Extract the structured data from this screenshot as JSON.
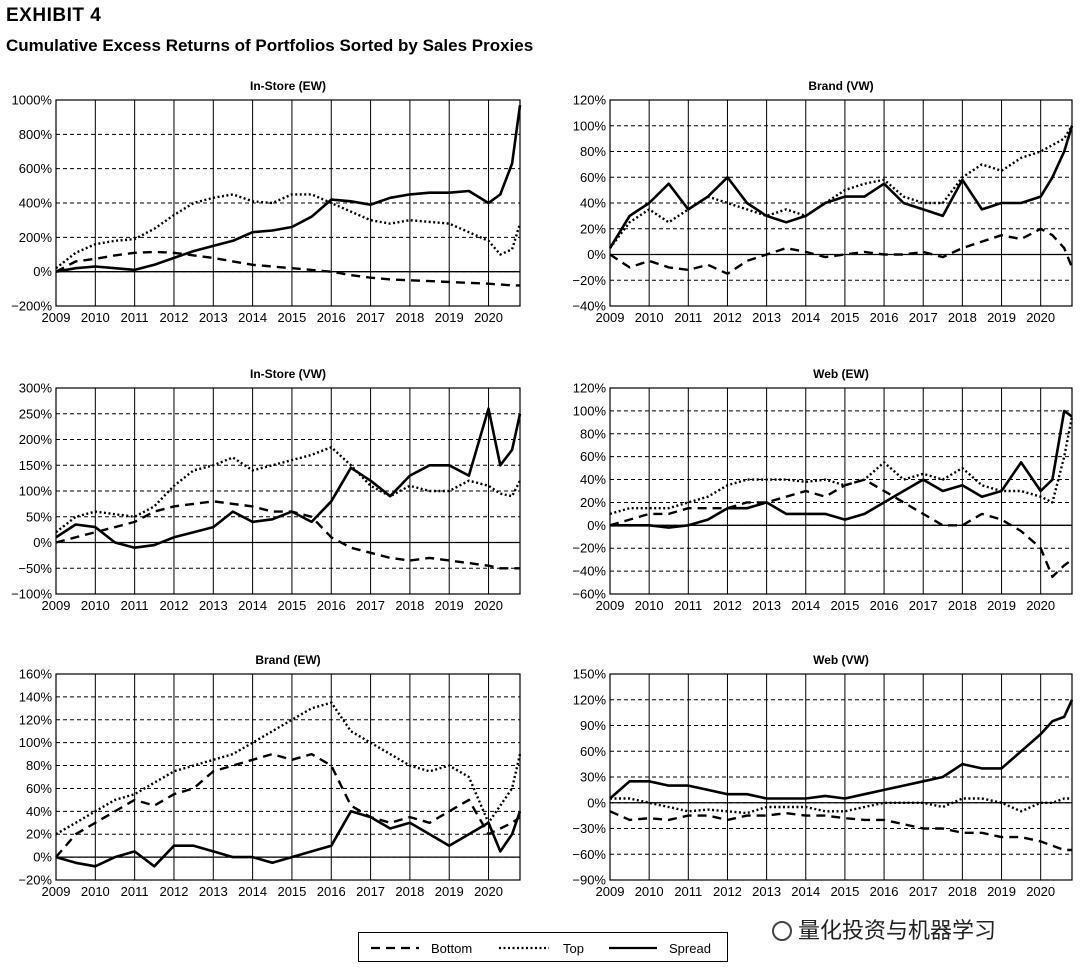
{
  "header": {
    "exhibit": "EXHIBIT 4",
    "title": "Cumulative Excess Returns of Portfolios Sorted by Sales Proxies"
  },
  "legend": {
    "bottom": "Bottom",
    "top": "Top",
    "spread": "Spread"
  },
  "watermark": "量化投资与机器学习",
  "chart_data": [
    {
      "type": "line",
      "title": "In-Store (EW)",
      "x": [
        2009,
        2009.5,
        2010,
        2010.5,
        2011,
        2011.5,
        2012,
        2012.5,
        2013,
        2013.5,
        2014,
        2014.5,
        2015,
        2015.5,
        2016,
        2016.5,
        2017,
        2017.5,
        2018,
        2018.5,
        2019,
        2019.5,
        2020,
        2020.3,
        2020.6,
        2020.8
      ],
      "xticks": [
        "2009",
        "2010",
        "2011",
        "2012",
        "2013",
        "2014",
        "2015",
        "2016",
        "2017",
        "2018",
        "2019",
        "2020"
      ],
      "yticks": [
        "−200%",
        "0%",
        "200%",
        "400%",
        "600%",
        "800%",
        "1000%"
      ],
      "ylim": [
        -200,
        1000
      ],
      "series": [
        {
          "name": "Bottom",
          "values": [
            0,
            60,
            75,
            95,
            110,
            115,
            110,
            95,
            80,
            60,
            40,
            30,
            20,
            10,
            0,
            -20,
            -35,
            -45,
            -50,
            -55,
            -60,
            -65,
            -70,
            -75,
            -80,
            -80
          ]
        },
        {
          "name": "Top",
          "values": [
            20,
            110,
            160,
            180,
            190,
            250,
            330,
            400,
            430,
            450,
            410,
            400,
            450,
            450,
            400,
            350,
            300,
            280,
            300,
            290,
            280,
            230,
            180,
            100,
            130,
            280
          ]
        },
        {
          "name": "Spread",
          "values": [
            0,
            20,
            30,
            20,
            10,
            40,
            80,
            120,
            150,
            180,
            230,
            240,
            260,
            320,
            420,
            410,
            390,
            430,
            450,
            460,
            460,
            470,
            400,
            450,
            630,
            970
          ]
        }
      ]
    },
    {
      "type": "line",
      "title": "Brand (VW)",
      "x": [
        2009,
        2009.5,
        2010,
        2010.5,
        2011,
        2011.5,
        2012,
        2012.5,
        2013,
        2013.5,
        2014,
        2014.5,
        2015,
        2015.5,
        2016,
        2016.5,
        2017,
        2017.5,
        2018,
        2018.5,
        2019,
        2019.5,
        2020,
        2020.3,
        2020.6,
        2020.8
      ],
      "xticks": [
        "2009",
        "2010",
        "2011",
        "2012",
        "2013",
        "2014",
        "2015",
        "2016",
        "2017",
        "2018",
        "2019",
        "2020"
      ],
      "yticks": [
        "−40%",
        "−20%",
        "0%",
        "20%",
        "40%",
        "60%",
        "80%",
        "100%",
        "120%"
      ],
      "ylim": [
        -40,
        120
      ],
      "series": [
        {
          "name": "Bottom",
          "values": [
            0,
            -10,
            -5,
            -10,
            -12,
            -8,
            -15,
            -5,
            0,
            5,
            2,
            -2,
            0,
            2,
            0,
            0,
            2,
            -2,
            5,
            10,
            15,
            12,
            20,
            15,
            5,
            -10
          ]
        },
        {
          "name": "Top",
          "values": [
            5,
            25,
            35,
            25,
            35,
            45,
            40,
            35,
            30,
            35,
            30,
            40,
            50,
            55,
            58,
            45,
            40,
            40,
            60,
            70,
            65,
            75,
            80,
            85,
            90,
            100
          ]
        },
        {
          "name": "Spread",
          "values": [
            5,
            30,
            40,
            55,
            35,
            45,
            60,
            40,
            30,
            25,
            30,
            40,
            45,
            45,
            55,
            40,
            35,
            30,
            58,
            35,
            40,
            40,
            45,
            60,
            80,
            100
          ]
        }
      ]
    },
    {
      "type": "line",
      "title": "In-Store (VW)",
      "x": [
        2009,
        2009.5,
        2010,
        2010.5,
        2011,
        2011.5,
        2012,
        2012.5,
        2013,
        2013.5,
        2014,
        2014.5,
        2015,
        2015.5,
        2016,
        2016.5,
        2017,
        2017.5,
        2018,
        2018.5,
        2019,
        2019.5,
        2020,
        2020.3,
        2020.6,
        2020.8
      ],
      "xticks": [
        "2009",
        "2010",
        "2011",
        "2012",
        "2013",
        "2014",
        "2015",
        "2016",
        "2017",
        "2018",
        "2019",
        "2020"
      ],
      "yticks": [
        "−100%",
        "−50%",
        "0%",
        "50%",
        "100%",
        "150%",
        "200%",
        "250%",
        "300%"
      ],
      "ylim": [
        -100,
        300
      ],
      "series": [
        {
          "name": "Bottom",
          "values": [
            0,
            10,
            20,
            30,
            40,
            60,
            70,
            75,
            80,
            75,
            70,
            60,
            60,
            50,
            10,
            -10,
            -20,
            -30,
            -35,
            -30,
            -35,
            -40,
            -45,
            -50,
            -50,
            -50
          ]
        },
        {
          "name": "Top",
          "values": [
            20,
            50,
            60,
            55,
            50,
            70,
            110,
            140,
            150,
            165,
            140,
            150,
            160,
            170,
            185,
            150,
            110,
            90,
            110,
            100,
            100,
            120,
            110,
            95,
            90,
            120
          ]
        },
        {
          "name": "Spread",
          "values": [
            10,
            35,
            30,
            0,
            -10,
            -5,
            10,
            20,
            30,
            60,
            40,
            45,
            60,
            40,
            80,
            145,
            120,
            90,
            130,
            150,
            150,
            130,
            260,
            150,
            180,
            250
          ]
        }
      ]
    },
    {
      "type": "line",
      "title": "Web (EW)",
      "x": [
        2009,
        2009.5,
        2010,
        2010.5,
        2011,
        2011.5,
        2012,
        2012.5,
        2013,
        2013.5,
        2014,
        2014.5,
        2015,
        2015.5,
        2016,
        2016.5,
        2017,
        2017.5,
        2018,
        2018.5,
        2019,
        2019.5,
        2020,
        2020.3,
        2020.6,
        2020.8
      ],
      "xticks": [
        "2009",
        "2010",
        "2011",
        "2012",
        "2013",
        "2014",
        "2015",
        "2016",
        "2017",
        "2018",
        "2019",
        "2020"
      ],
      "yticks": [
        "−60%",
        "−40%",
        "−20%",
        "0%",
        "20%",
        "40%",
        "60%",
        "80%",
        "100%",
        "120%"
      ],
      "ylim": [
        -60,
        120
      ],
      "series": [
        {
          "name": "Bottom",
          "values": [
            0,
            5,
            10,
            10,
            15,
            15,
            15,
            20,
            20,
            25,
            30,
            25,
            35,
            40,
            30,
            20,
            10,
            0,
            0,
            10,
            5,
            -5,
            -20,
            -45,
            -35,
            -30
          ]
        },
        {
          "name": "Top",
          "values": [
            10,
            15,
            15,
            15,
            20,
            25,
            35,
            40,
            40,
            40,
            38,
            40,
            35,
            40,
            55,
            40,
            45,
            40,
            50,
            35,
            30,
            30,
            25,
            20,
            60,
            95
          ]
        },
        {
          "name": "Spread",
          "values": [
            0,
            0,
            0,
            -2,
            0,
            5,
            15,
            15,
            20,
            10,
            10,
            10,
            5,
            10,
            20,
            30,
            40,
            30,
            35,
            25,
            30,
            55,
            30,
            40,
            100,
            95
          ]
        }
      ]
    },
    {
      "type": "line",
      "title": "Brand (EW)",
      "x": [
        2009,
        2009.5,
        2010,
        2010.5,
        2011,
        2011.5,
        2012,
        2012.5,
        2013,
        2013.5,
        2014,
        2014.5,
        2015,
        2015.5,
        2016,
        2016.5,
        2017,
        2017.5,
        2018,
        2018.5,
        2019,
        2019.5,
        2020,
        2020.3,
        2020.6,
        2020.8
      ],
      "xticks": [
        "2009",
        "2010",
        "2011",
        "2012",
        "2013",
        "2014",
        "2015",
        "2016",
        "2017",
        "2018",
        "2019",
        "2020"
      ],
      "yticks": [
        "−20%",
        "0%",
        "20%",
        "40%",
        "60%",
        "80%",
        "100%",
        "120%",
        "140%",
        "160%"
      ],
      "ylim": [
        -20,
        160
      ],
      "series": [
        {
          "name": "Bottom",
          "values": [
            0,
            20,
            30,
            40,
            50,
            45,
            55,
            60,
            75,
            80,
            85,
            90,
            85,
            90,
            80,
            45,
            35,
            30,
            35,
            30,
            40,
            50,
            20,
            25,
            30,
            35
          ]
        },
        {
          "name": "Top",
          "values": [
            20,
            30,
            40,
            50,
            55,
            65,
            75,
            80,
            85,
            90,
            100,
            110,
            120,
            130,
            135,
            110,
            100,
            90,
            80,
            75,
            80,
            70,
            30,
            45,
            60,
            90
          ]
        },
        {
          "name": "Spread",
          "values": [
            0,
            -5,
            -8,
            0,
            5,
            -8,
            10,
            10,
            5,
            0,
            0,
            -5,
            0,
            5,
            10,
            40,
            35,
            25,
            30,
            20,
            10,
            20,
            30,
            5,
            20,
            40
          ]
        }
      ]
    },
    {
      "type": "line",
      "title": "Web (VW)",
      "x": [
        2009,
        2009.5,
        2010,
        2010.5,
        2011,
        2011.5,
        2012,
        2012.5,
        2013,
        2013.5,
        2014,
        2014.5,
        2015,
        2015.5,
        2016,
        2016.5,
        2017,
        2017.5,
        2018,
        2018.5,
        2019,
        2019.5,
        2020,
        2020.3,
        2020.6,
        2020.8
      ],
      "xticks": [
        "2009",
        "2010",
        "2011",
        "2012",
        "2013",
        "2014",
        "2015",
        "2016",
        "2017",
        "2018",
        "2019",
        "2020"
      ],
      "yticks": [
        "−90%",
        "−60%",
        "−30%",
        "0%",
        "30%",
        "60%",
        "90%",
        "120%",
        "150%"
      ],
      "ylim": [
        -90,
        150
      ],
      "series": [
        {
          "name": "Bottom",
          "values": [
            -10,
            -20,
            -18,
            -20,
            -15,
            -15,
            -20,
            -15,
            -15,
            -12,
            -15,
            -15,
            -18,
            -20,
            -20,
            -25,
            -30,
            -30,
            -35,
            -35,
            -40,
            -40,
            -45,
            -50,
            -55,
            -55
          ]
        },
        {
          "name": "Top",
          "values": [
            5,
            5,
            0,
            -5,
            -10,
            -8,
            -10,
            -12,
            -5,
            -5,
            -5,
            -10,
            -10,
            -5,
            0,
            0,
            0,
            -5,
            5,
            5,
            0,
            -10,
            0,
            0,
            5,
            5
          ]
        },
        {
          "name": "Spread",
          "values": [
            5,
            25,
            25,
            20,
            20,
            15,
            10,
            10,
            5,
            5,
            5,
            8,
            5,
            10,
            15,
            20,
            25,
            30,
            45,
            40,
            40,
            60,
            80,
            95,
            100,
            120
          ]
        }
      ]
    }
  ]
}
